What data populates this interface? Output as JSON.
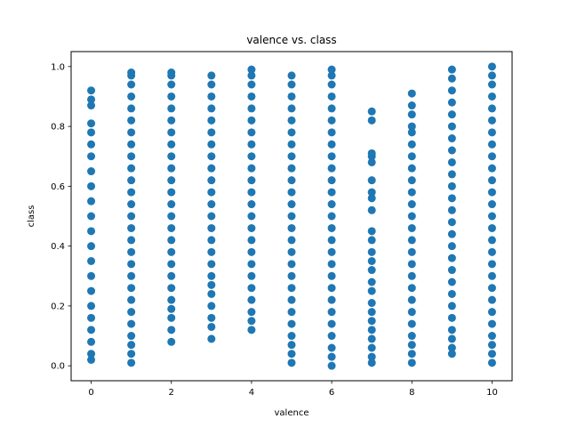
{
  "chart_data": {
    "type": "scatter",
    "title": "valence vs. class",
    "xlabel": "valence",
    "ylabel": "class",
    "xlim": [
      -0.5,
      10.5
    ],
    "ylim": [
      -0.05,
      1.05
    ],
    "xticks": [
      0,
      2,
      4,
      6,
      8,
      10
    ],
    "yticks": [
      0.0,
      0.2,
      0.4,
      0.6,
      0.8,
      1.0
    ],
    "xtick_labels": [
      "0",
      "2",
      "4",
      "6",
      "8",
      "10"
    ],
    "ytick_labels": [
      "0.0",
      "0.2",
      "0.4",
      "0.6",
      "0.8",
      "1.0"
    ],
    "grid": false,
    "color": "#1f77b4",
    "columns": [
      {
        "x": 0,
        "y_min": 0.02,
        "y_max": 0.92,
        "sample_values": [
          0.02,
          0.04,
          0.08,
          0.12,
          0.16,
          0.2,
          0.25,
          0.3,
          0.35,
          0.4,
          0.45,
          0.5,
          0.55,
          0.6,
          0.65,
          0.7,
          0.74,
          0.78,
          0.81,
          0.87,
          0.89,
          0.92
        ]
      },
      {
        "x": 1,
        "y_min": 0.01,
        "y_max": 0.98,
        "sample_values": [
          0.01,
          0.04,
          0.07,
          0.1,
          0.14,
          0.18,
          0.22,
          0.26,
          0.3,
          0.34,
          0.38,
          0.42,
          0.46,
          0.5,
          0.54,
          0.58,
          0.62,
          0.66,
          0.7,
          0.74,
          0.78,
          0.82,
          0.86,
          0.9,
          0.94,
          0.97,
          0.98
        ]
      },
      {
        "x": 2,
        "y_min": 0.08,
        "y_max": 0.98,
        "sample_values": [
          0.08,
          0.12,
          0.16,
          0.19,
          0.22,
          0.26,
          0.3,
          0.34,
          0.38,
          0.42,
          0.46,
          0.5,
          0.54,
          0.58,
          0.62,
          0.66,
          0.7,
          0.74,
          0.78,
          0.82,
          0.86,
          0.9,
          0.94,
          0.97,
          0.98
        ]
      },
      {
        "x": 3,
        "y_min": 0.09,
        "y_max": 0.97,
        "sample_values": [
          0.09,
          0.13,
          0.16,
          0.2,
          0.24,
          0.27,
          0.3,
          0.34,
          0.38,
          0.42,
          0.46,
          0.5,
          0.54,
          0.58,
          0.62,
          0.66,
          0.7,
          0.74,
          0.78,
          0.82,
          0.86,
          0.9,
          0.94,
          0.97
        ]
      },
      {
        "x": 4,
        "y_min": 0.12,
        "y_max": 0.99,
        "sample_values": [
          0.12,
          0.15,
          0.18,
          0.22,
          0.26,
          0.3,
          0.34,
          0.38,
          0.42,
          0.46,
          0.5,
          0.54,
          0.58,
          0.62,
          0.66,
          0.7,
          0.74,
          0.78,
          0.82,
          0.86,
          0.9,
          0.94,
          0.97,
          0.99
        ]
      },
      {
        "x": 5,
        "y_min": 0.01,
        "y_max": 0.97,
        "sample_values": [
          0.01,
          0.04,
          0.07,
          0.1,
          0.14,
          0.18,
          0.22,
          0.26,
          0.3,
          0.34,
          0.38,
          0.42,
          0.46,
          0.5,
          0.54,
          0.58,
          0.62,
          0.66,
          0.7,
          0.74,
          0.78,
          0.82,
          0.86,
          0.9,
          0.94,
          0.97
        ]
      },
      {
        "x": 6,
        "y_min": 0.0,
        "y_max": 0.99,
        "sample_values": [
          0.0,
          0.03,
          0.06,
          0.1,
          0.14,
          0.18,
          0.22,
          0.26,
          0.3,
          0.34,
          0.38,
          0.42,
          0.46,
          0.5,
          0.54,
          0.58,
          0.62,
          0.66,
          0.7,
          0.74,
          0.78,
          0.82,
          0.86,
          0.9,
          0.94,
          0.97,
          0.99
        ]
      },
      {
        "x": 7,
        "y_min": 0.01,
        "y_max": 0.85,
        "sample_values": [
          0.01,
          0.03,
          0.06,
          0.09,
          0.12,
          0.15,
          0.18,
          0.21,
          0.25,
          0.28,
          0.32,
          0.35,
          0.38,
          0.42,
          0.45,
          0.52,
          0.56,
          0.58,
          0.62,
          0.68,
          0.7,
          0.71,
          0.82,
          0.85
        ]
      },
      {
        "x": 8,
        "y_min": 0.01,
        "y_max": 0.91,
        "sample_values": [
          0.01,
          0.04,
          0.07,
          0.1,
          0.14,
          0.18,
          0.22,
          0.26,
          0.3,
          0.34,
          0.38,
          0.42,
          0.46,
          0.5,
          0.54,
          0.58,
          0.62,
          0.66,
          0.7,
          0.74,
          0.78,
          0.8,
          0.84,
          0.87,
          0.91
        ]
      },
      {
        "x": 9,
        "y_min": 0.04,
        "y_max": 0.99,
        "sample_values": [
          0.04,
          0.06,
          0.09,
          0.12,
          0.16,
          0.2,
          0.24,
          0.28,
          0.32,
          0.36,
          0.4,
          0.44,
          0.48,
          0.52,
          0.56,
          0.6,
          0.64,
          0.68,
          0.72,
          0.76,
          0.8,
          0.84,
          0.88,
          0.92,
          0.96,
          0.99
        ]
      },
      {
        "x": 10,
        "y_min": 0.01,
        "y_max": 1.0,
        "sample_values": [
          0.01,
          0.04,
          0.07,
          0.1,
          0.14,
          0.18,
          0.22,
          0.26,
          0.3,
          0.34,
          0.38,
          0.42,
          0.46,
          0.5,
          0.54,
          0.58,
          0.62,
          0.66,
          0.7,
          0.74,
          0.78,
          0.82,
          0.86,
          0.9,
          0.94,
          0.97,
          1.0
        ]
      }
    ]
  }
}
